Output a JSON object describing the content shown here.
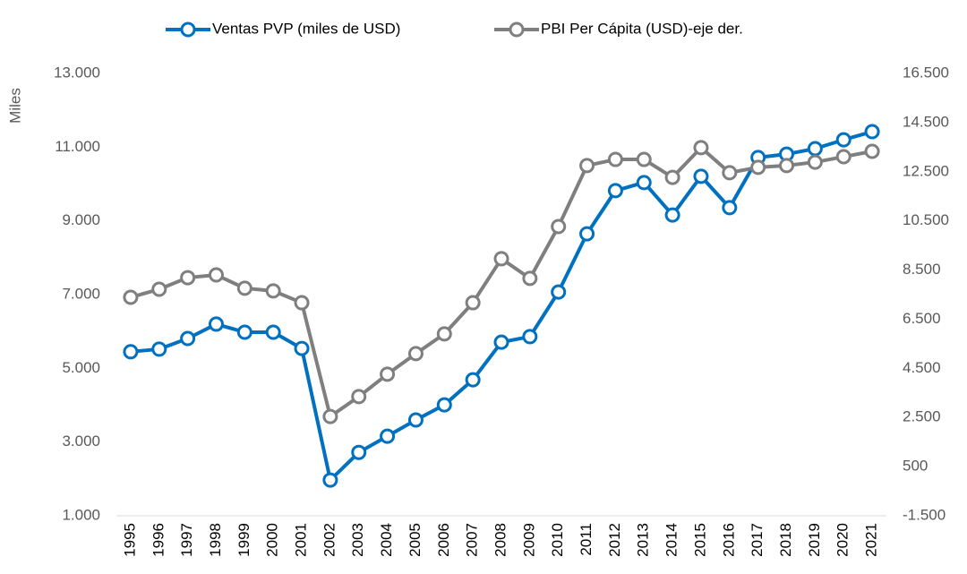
{
  "chart_data": {
    "type": "line",
    "y_label": "Miles",
    "categories": [
      "1995",
      "1996",
      "1997",
      "1998",
      "1999",
      "2000",
      "2001",
      "2002",
      "2003",
      "2004",
      "2005",
      "2006",
      "2007",
      "2008",
      "2009",
      "2010",
      "2011",
      "2012",
      "2013",
      "2014",
      "2015",
      "2016",
      "2017",
      "2018",
      "2019",
      "2020",
      "2021"
    ],
    "series": [
      {
        "name": "Ventas PVP (miles de USD)",
        "color": "#0070c0",
        "values": [
          5450,
          5520,
          5810,
          6200,
          5980,
          5980,
          5540,
          1970,
          2720,
          3160,
          3600,
          4010,
          4690,
          5710,
          5860,
          7070,
          8650,
          9820,
          10040,
          9160,
          10210,
          9360,
          10720,
          10810,
          10960,
          11200,
          11420
        ]
      },
      {
        "name": "PBI Per Cápita (USD)-eje der.",
        "color": "#7f7f7f",
        "axis": "y2",
        "values": [
          7390,
          7720,
          8190,
          8300,
          7760,
          7650,
          7170,
          2540,
          3350,
          4260,
          5100,
          5900,
          7170,
          8960,
          8160,
          10270,
          12750,
          13000,
          13000,
          12270,
          13480,
          12460,
          12680,
          12750,
          12890,
          13110,
          13330
        ]
      }
    ],
    "ylim": [
      1000,
      13000
    ],
    "yticks": [
      {
        "value": 1000,
        "label": "1.000"
      },
      {
        "value": 3000,
        "label": "3.000"
      },
      {
        "value": 5000,
        "label": "5.000"
      },
      {
        "value": 7000,
        "label": "7.000"
      },
      {
        "value": 9000,
        "label": "9.000"
      },
      {
        "value": 11000,
        "label": "11.000"
      },
      {
        "value": 13000,
        "label": "13.000"
      }
    ],
    "y2lim": [
      -1500,
      16500
    ],
    "y2ticks": [
      {
        "value": -1500,
        "label": "-1.500"
      },
      {
        "value": 500,
        "label": "500"
      },
      {
        "value": 2500,
        "label": "2.500"
      },
      {
        "value": 4500,
        "label": "4.500"
      },
      {
        "value": 6500,
        "label": "6.500"
      },
      {
        "value": 8500,
        "label": "8.500"
      },
      {
        "value": 10500,
        "label": "10.500"
      },
      {
        "value": 12500,
        "label": "12.500"
      },
      {
        "value": 14500,
        "label": "14.500"
      },
      {
        "value": 16500,
        "label": "16.500"
      }
    ],
    "legend": "top"
  }
}
